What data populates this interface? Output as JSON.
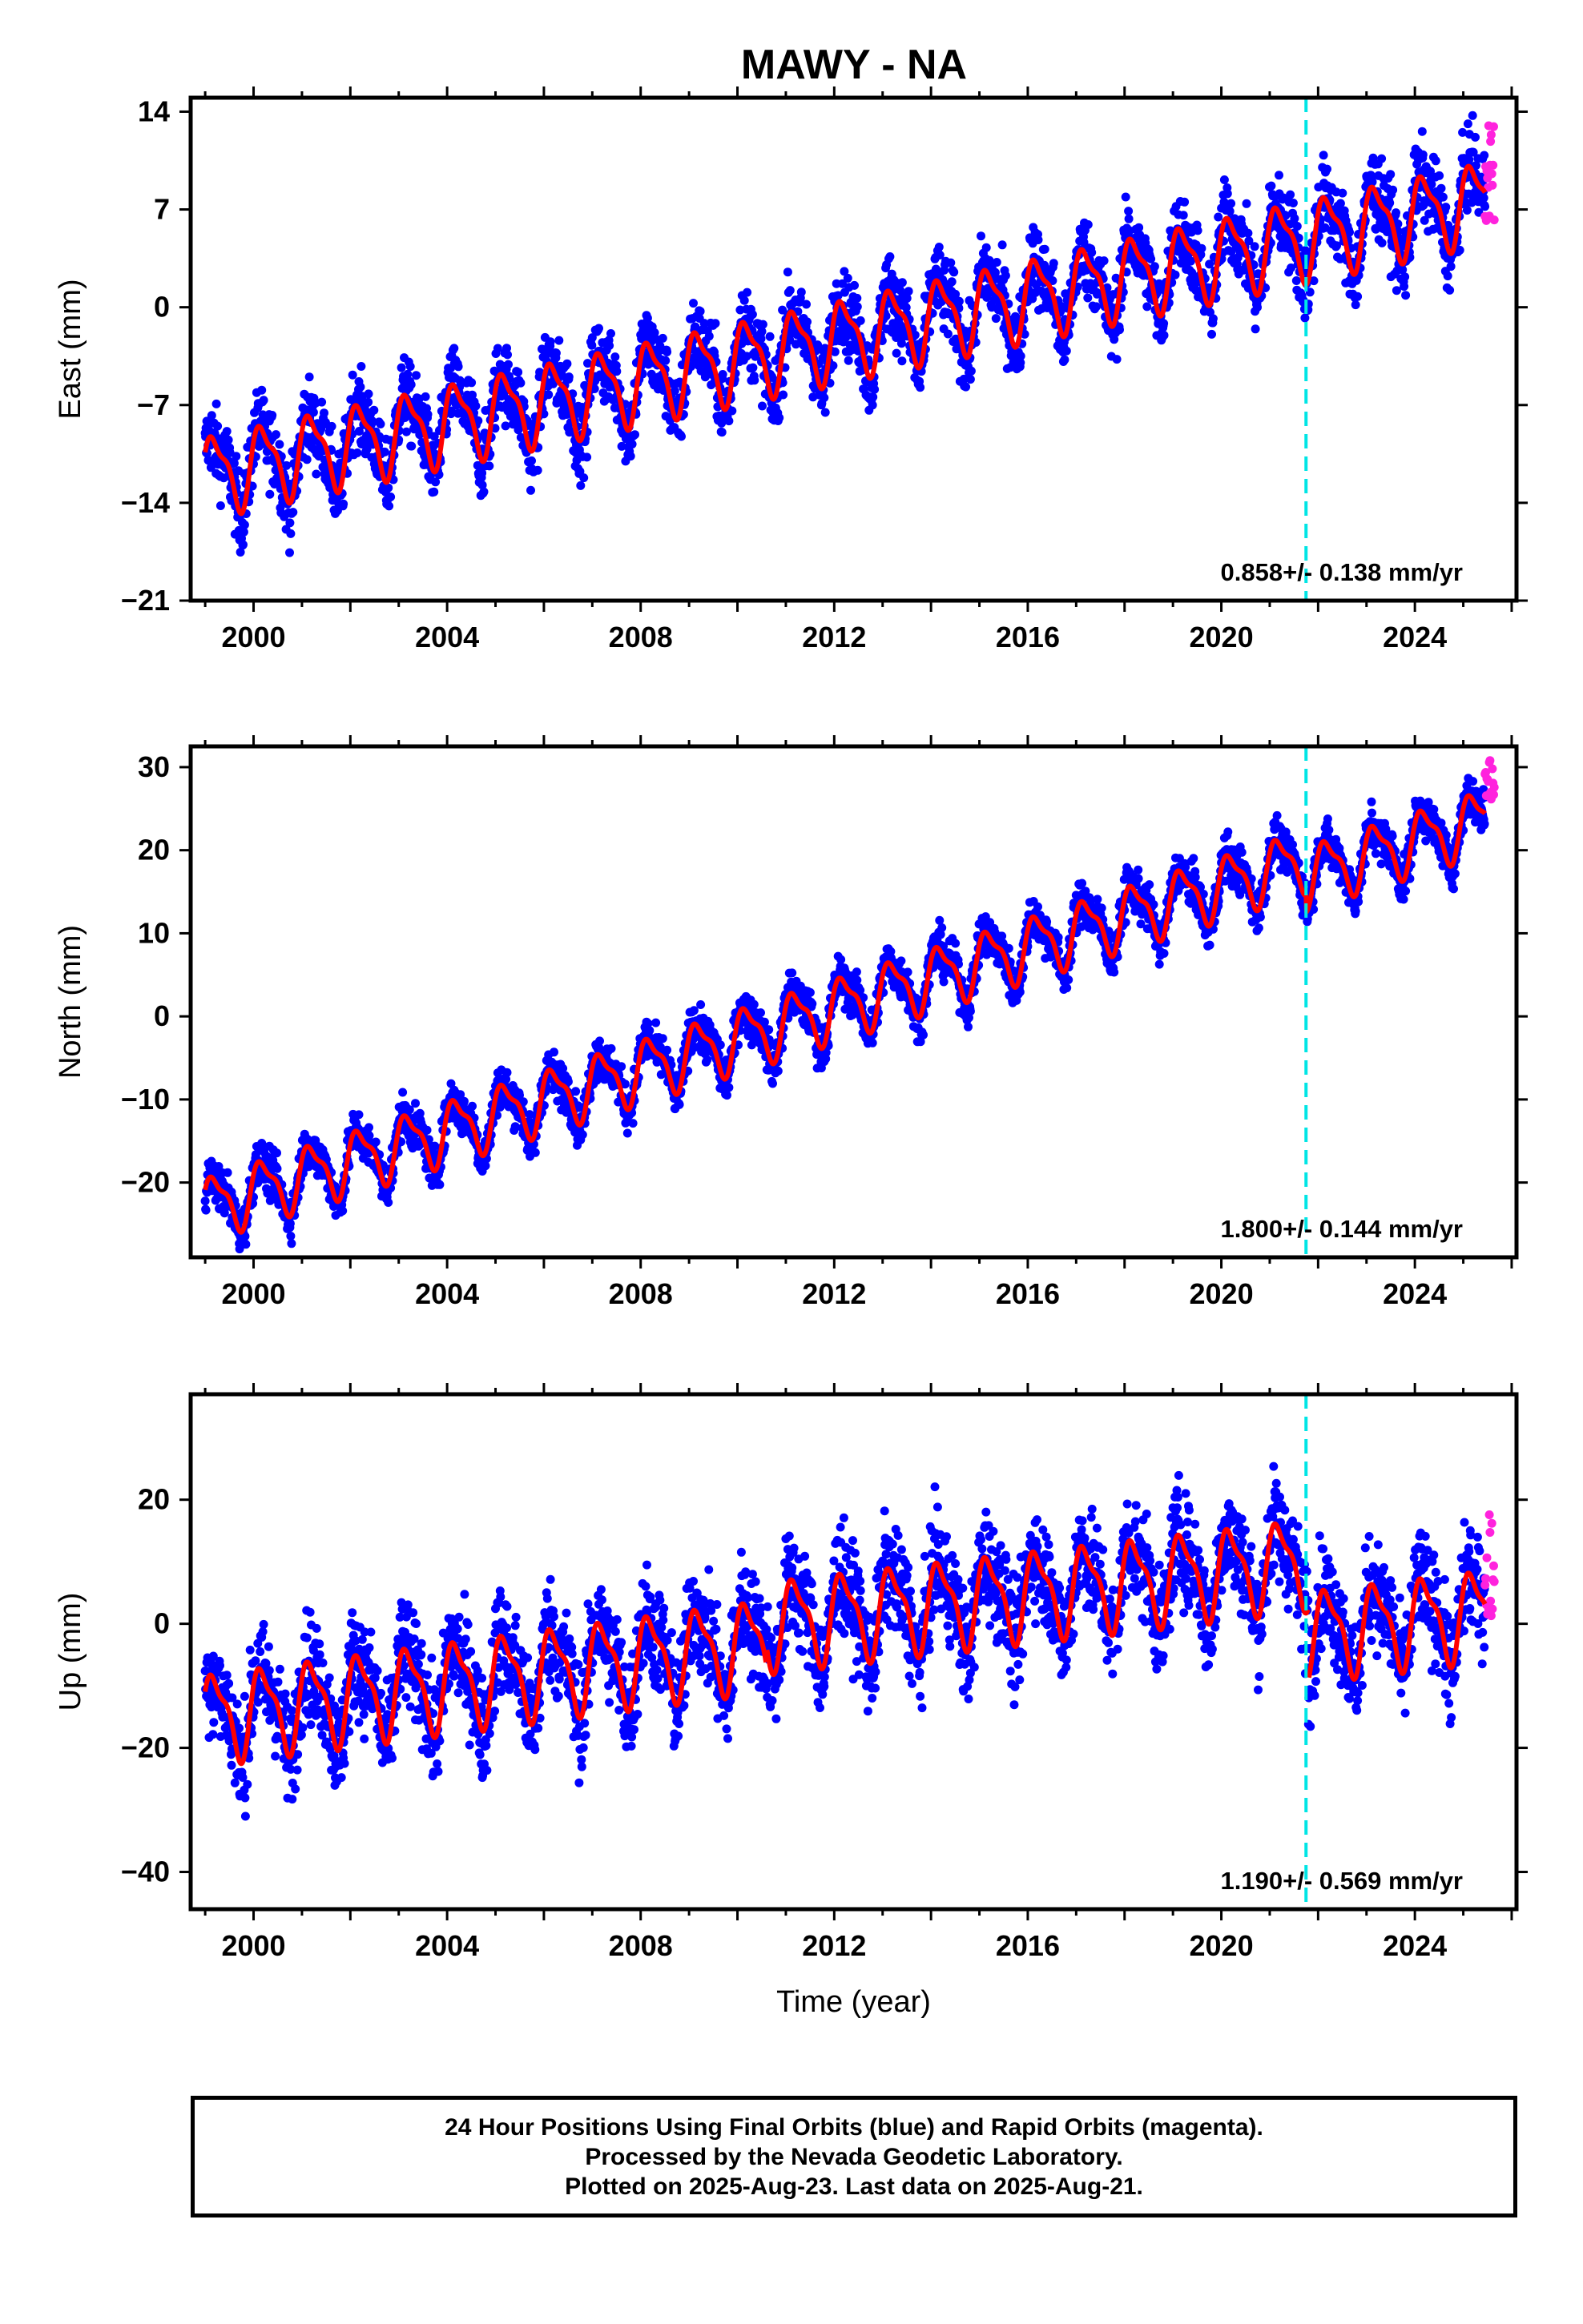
{
  "title": "MAWY - NA",
  "colors": {
    "final": "#0000ff",
    "rapid": "#ff22dd",
    "model": "#ff0000",
    "marker": "#00e5e5"
  },
  "chart_data": [
    {
      "type": "scatter",
      "component": "east",
      "ylabel": "East (mm)",
      "xlabel": "",
      "xlim": [
        1998.7,
        2026.1
      ],
      "ylim": [
        -21,
        15
      ],
      "yticks": [
        14,
        7,
        0,
        -7,
        -14,
        -21
      ],
      "xticks": [
        2000,
        2004,
        2008,
        2012,
        2016,
        2020,
        2024
      ],
      "rate": "0.858+/- 0.138 mm/yr",
      "equipment_change_year": 2021.75,
      "trend": {
        "start_year": 1999.0,
        "start_value": -12.0,
        "end_year": 2025.6,
        "end_value": 7.8
      },
      "seasonal_amplitude": 2.6,
      "offsets": [
        {
          "year": 2021.75,
          "delta": 0
        }
      ],
      "scatter_spread": 2.6,
      "rapid_points": {
        "start_year": 2025.45,
        "end_year": 2025.64,
        "min": 6.0,
        "max": 13.5
      },
      "grid": false
    },
    {
      "type": "scatter",
      "component": "north",
      "ylabel": "North (mm)",
      "xlabel": "",
      "xlim": [
        1998.7,
        2026.1
      ],
      "ylim": [
        -29,
        32.5
      ],
      "yticks": [
        30,
        20,
        10,
        0,
        -10,
        -20
      ],
      "xticks": [
        2000,
        2004,
        2008,
        2012,
        2016,
        2020,
        2024
      ],
      "rate": "1.800+/- 0.144 mm/yr",
      "equipment_change_year": 2021.75,
      "trend": {
        "start_year": 1999.0,
        "start_value": -23.0,
        "end_year": 2025.6,
        "end_value": 26.0
      },
      "seasonal_amplitude": 3.4,
      "offsets": [
        {
          "year": 2021.75,
          "delta": -2.0
        }
      ],
      "scatter_spread": 2.5,
      "rapid_points": {
        "start_year": 2025.45,
        "end_year": 2025.64,
        "min": 26.0,
        "max": 31.0
      },
      "grid": false
    },
    {
      "type": "scatter",
      "component": "up",
      "ylabel": "Up (mm)",
      "xlabel": "Time (year)",
      "xlim": [
        1998.7,
        2026.1
      ],
      "ylim": [
        -46,
        37
      ],
      "yticks": [
        20,
        0,
        -20,
        -40
      ],
      "xticks": [
        2000,
        2004,
        2008,
        2012,
        2016,
        2020,
        2024
      ],
      "rate": "1.190+/- 0.569 mm/yr",
      "equipment_change_year": 2021.75,
      "trend": {
        "start_year": 1999.0,
        "start_value": -15.0,
        "end_year": 2010.5,
        "end_value": -3.0
      },
      "trend_after": {
        "start_year": 2010.6,
        "start_value": 0.0,
        "end_year": 2021.7,
        "end_value": 10.0
      },
      "trend_final": {
        "start_year": 2021.8,
        "start_value": -1.5,
        "end_year": 2025.6,
        "end_value": 2.0
      },
      "seasonal_amplitude": 6.5,
      "scatter_spread": 8.0,
      "rapid_points": {
        "start_year": 2025.45,
        "end_year": 2025.64,
        "min": 0.0,
        "max": 19.0
      },
      "grid": false
    }
  ],
  "caption": {
    "line1": "24 Hour Positions Using Final Orbits (blue) and Rapid Orbits (magenta).",
    "line2": "Processed by the Nevada Geodetic Laboratory.",
    "line3": "Plotted on 2025-Aug-23. Last data on 2025-Aug-21."
  }
}
